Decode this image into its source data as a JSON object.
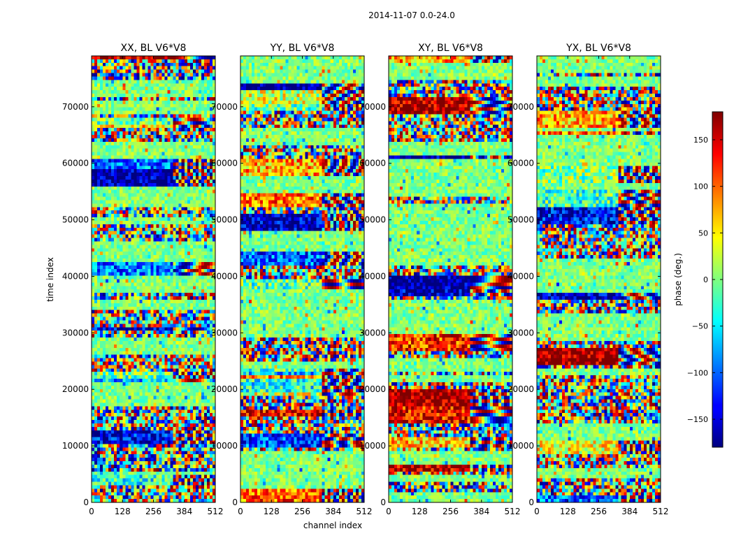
{
  "figure": {
    "suptitle": "2014-11-07 0.0-24.0"
  },
  "chart_data": {
    "type": "heatmap",
    "ylabel": "time index",
    "xlabel": "channel index",
    "xlim": [
      0,
      512
    ],
    "ylim": [
      0,
      79000
    ],
    "xticks": [
      0,
      128,
      256,
      384,
      512
    ],
    "yticks": [
      0,
      10000,
      20000,
      30000,
      40000,
      50000,
      60000,
      70000
    ],
    "colorbar": {
      "label": "phase (deg.)",
      "range": [
        -180,
        180
      ],
      "ticks": [
        -150,
        -100,
        -50,
        0,
        50,
        100,
        150
      ],
      "tick_labels": [
        "−150",
        "−100",
        "−50",
        "0",
        "50",
        "100",
        "150"
      ],
      "colormap": "jet"
    },
    "panels": [
      {
        "title": "XX, BL V6*V8"
      },
      {
        "title": "YY, BL V6*V8"
      },
      {
        "title": "XY, BL V6*V8"
      },
      {
        "title": "YX, BL V6*V8"
      }
    ]
  }
}
